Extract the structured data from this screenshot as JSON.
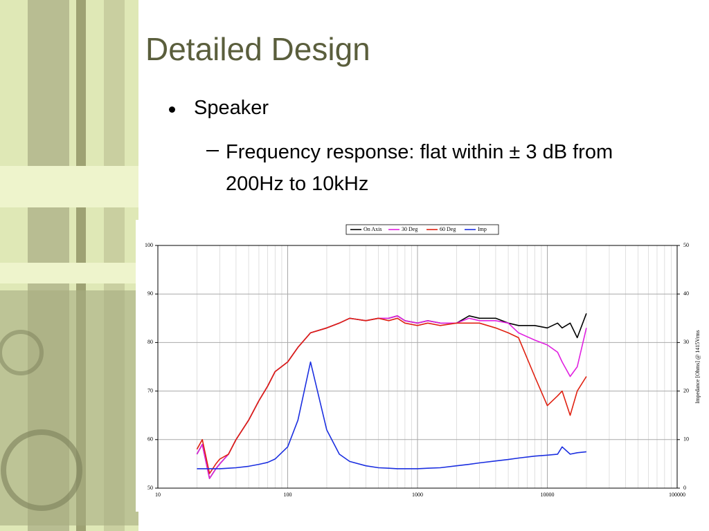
{
  "title": "Detailed Design",
  "bullets": [
    {
      "text": "Speaker",
      "sub": [
        "Frequency response: flat within ± 3 dB from 200Hz to 10kHz"
      ]
    }
  ],
  "chart_data": {
    "type": "line",
    "log_x": true,
    "grid": true,
    "legend": "top",
    "y2_label": "Impedance [Ohms] @ 1415Vrms",
    "xlim": [
      10,
      100000
    ],
    "xticks": [
      10,
      100,
      1000,
      10000,
      100000
    ],
    "ylim": [
      50,
      100
    ],
    "yticks": [
      50,
      60,
      70,
      80,
      90,
      100
    ],
    "y2lim": [
      0,
      50
    ],
    "y2ticks": [
      0,
      10,
      20,
      30,
      40,
      50
    ],
    "x": [
      20,
      22,
      25,
      28,
      30,
      35,
      40,
      50,
      60,
      70,
      80,
      100,
      120,
      150,
      200,
      250,
      300,
      400,
      500,
      600,
      700,
      800,
      1000,
      1200,
      1500,
      2000,
      2500,
      3000,
      4000,
      5000,
      6000,
      8000,
      10000,
      12000,
      13000,
      15000,
      17000,
      20000
    ],
    "series": [
      {
        "name": "On Axis",
        "color": "#000000",
        "values": [
          57,
          59,
          52,
          54,
          55,
          57,
          60,
          64,
          68,
          71,
          74,
          76,
          79,
          82,
          83,
          84,
          85,
          84.5,
          85,
          85,
          85.5,
          84.5,
          84,
          84.5,
          84,
          84,
          85.5,
          85,
          85,
          84,
          83.5,
          83.5,
          83,
          84,
          83,
          84,
          81,
          86
        ]
      },
      {
        "name": "30 Deg",
        "color": "#e020e0",
        "values": [
          57,
          59,
          52,
          54,
          55,
          57,
          60,
          64,
          68,
          71,
          74,
          76,
          79,
          82,
          83,
          84,
          85,
          84.5,
          85,
          85,
          85.5,
          84.5,
          84,
          84.5,
          84,
          84,
          85,
          84.5,
          84.5,
          84,
          82,
          80.5,
          79.5,
          78,
          76,
          73,
          75,
          83
        ]
      },
      {
        "name": "60 Deg",
        "color": "#e02010",
        "values": [
          58,
          60,
          53,
          55,
          56,
          57,
          60,
          64,
          68,
          71,
          74,
          76,
          79,
          82,
          83,
          84,
          85,
          84.5,
          85,
          84.5,
          85,
          84,
          83.5,
          84,
          83.5,
          84,
          84,
          84,
          83,
          82,
          81,
          73,
          67,
          69,
          70,
          65,
          70,
          73
        ]
      },
      {
        "name": "Imp",
        "color": "#1a2ee0",
        "axis": "y2",
        "values": [
          4,
          4,
          4,
          4,
          4,
          4.1,
          4.2,
          4.5,
          4.9,
          5.3,
          6,
          8.5,
          14,
          26,
          12,
          7,
          5.5,
          4.6,
          4.2,
          4.1,
          4,
          4,
          4,
          4.1,
          4.2,
          4.6,
          4.9,
          5.2,
          5.6,
          5.9,
          6.2,
          6.6,
          6.8,
          7,
          8.5,
          7,
          7.3,
          7.5
        ]
      }
    ]
  }
}
